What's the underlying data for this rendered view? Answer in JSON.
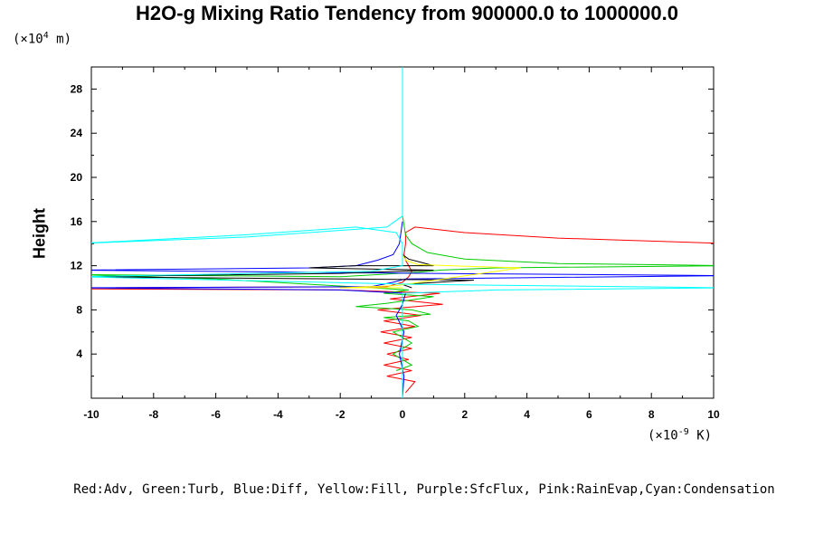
{
  "chart_data": {
    "type": "line",
    "title": "H2O-g Mixing Ratio Tendency from 900000.0 to 1000000.0",
    "xlabel": "",
    "ylabel": "Height",
    "x_unit_prefix": "(×10",
    "x_unit_exp": "-9",
    "x_unit_suffix": " K)",
    "y_unit_prefix": "(×10",
    "y_unit_exp": "4",
    "y_unit_suffix": " m)",
    "xlim": [
      -10,
      10
    ],
    "ylim": [
      0,
      30
    ],
    "x_ticks": [
      "-10",
      "-8",
      "-6",
      "-4",
      "-2",
      "0",
      "2",
      "4",
      "6",
      "8",
      "10"
    ],
    "y_ticks": [
      "4",
      "8",
      "12",
      "16",
      "20",
      "24",
      "28"
    ],
    "legend_text": "Red:Adv, Green:Turb, Blue:Diff, Yellow:Fill, Purple:SfcFlux, Pink:RainEvap,Cyan:Condensation",
    "series": [
      {
        "color": "#ff0000",
        "points": [
          [
            0.1,
            0.5
          ],
          [
            0.4,
            1.5
          ],
          [
            -0.5,
            2.0
          ],
          [
            0.3,
            2.5
          ],
          [
            -0.6,
            3.0
          ],
          [
            0.2,
            3.5
          ],
          [
            -0.5,
            4.0
          ],
          [
            0.3,
            4.5
          ],
          [
            -0.6,
            5.0
          ],
          [
            0.3,
            5.5
          ],
          [
            -0.7,
            6.0
          ],
          [
            0.4,
            6.5
          ],
          [
            -0.6,
            7.0
          ],
          [
            0.6,
            7.5
          ],
          [
            -0.8,
            8.0
          ],
          [
            1.3,
            8.5
          ],
          [
            -0.4,
            9.0
          ],
          [
            1.2,
            9.5
          ],
          [
            -2.0,
            9.8
          ],
          [
            -10.5,
            9.9
          ],
          [
            -10.5,
            10.0
          ],
          [
            -0.5,
            10.1
          ],
          [
            0,
            10.5
          ],
          [
            0.2,
            11.0
          ],
          [
            0.3,
            11.5
          ],
          [
            0.2,
            12.0
          ],
          [
            0.1,
            12.5
          ],
          [
            0.05,
            13.0
          ],
          [
            0.1,
            14.0
          ],
          [
            0.1,
            15.0
          ],
          [
            0.4,
            15.5
          ],
          [
            2.0,
            15.0
          ],
          [
            5.0,
            14.5
          ],
          [
            10.5,
            14.0
          ]
        ]
      },
      {
        "color": "#00cc00",
        "points": [
          [
            -0.2,
            2.5
          ],
          [
            0.3,
            3.0
          ],
          [
            -0.3,
            4.0
          ],
          [
            0.3,
            5.0
          ],
          [
            -0.3,
            6.0
          ],
          [
            0.5,
            6.5
          ],
          [
            0.2,
            7.0
          ],
          [
            -0.6,
            7.3
          ],
          [
            0.9,
            7.6
          ],
          [
            0.3,
            8.0
          ],
          [
            -1.5,
            8.3
          ],
          [
            -0.5,
            8.6
          ],
          [
            0.3,
            8.9
          ],
          [
            1.0,
            9.2
          ],
          [
            -0.6,
            9.5
          ],
          [
            0.2,
            9.8
          ],
          [
            -1.0,
            10.0
          ],
          [
            -6.0,
            10.8
          ],
          [
            -10.5,
            11.2
          ],
          [
            -2.0,
            11.0
          ],
          [
            0.5,
            11.4
          ],
          [
            1.2,
            11.6
          ],
          [
            3.0,
            11.8
          ],
          [
            10.5,
            12.0
          ],
          [
            5.0,
            12.2
          ],
          [
            2.0,
            12.6
          ],
          [
            0.8,
            13.2
          ],
          [
            0.3,
            14.0
          ],
          [
            0.1,
            14.8
          ],
          [
            0.0,
            16.5
          ]
        ]
      },
      {
        "color": "#0000ff",
        "points": [
          [
            0.0,
            0.0
          ],
          [
            0.05,
            2.0
          ],
          [
            -0.1,
            4.0
          ],
          [
            0.05,
            6.0
          ],
          [
            -0.2,
            7.5
          ],
          [
            0.0,
            8.5
          ],
          [
            0.1,
            9.5
          ],
          [
            -2.0,
            9.8
          ],
          [
            -10.5,
            10.0
          ],
          [
            -1.0,
            10.1
          ],
          [
            -0.3,
            10.5
          ],
          [
            0.1,
            10.8
          ],
          [
            10.5,
            11.1
          ],
          [
            1.0,
            11.3
          ],
          [
            -10.5,
            11.6
          ],
          [
            -3.0,
            11.8
          ],
          [
            -1.5,
            12.0
          ],
          [
            -0.8,
            12.5
          ],
          [
            -0.3,
            13.0
          ],
          [
            -0.1,
            14.0
          ],
          [
            0.0,
            16.0
          ]
        ]
      },
      {
        "color": "#000000",
        "points": [
          [
            0.3,
            10.0
          ],
          [
            0.0,
            10.3
          ],
          [
            2.3,
            10.7
          ],
          [
            -10.5,
            11.0
          ],
          [
            -2.0,
            11.3
          ],
          [
            1.0,
            11.6
          ],
          [
            -3.0,
            11.8
          ],
          [
            -1.5,
            12.0
          ],
          [
            1.0,
            12.0
          ],
          [
            0.6,
            12.3
          ],
          [
            0.2,
            12.6
          ],
          [
            0.0,
            13.0
          ],
          [
            0.0,
            14.0
          ]
        ]
      },
      {
        "color": "#ffff00",
        "points": [
          [
            0.0,
            10.0
          ],
          [
            -2.0,
            10.0
          ],
          [
            -0.2,
            10.2
          ],
          [
            3.8,
            11.8
          ],
          [
            2.5,
            11.9
          ],
          [
            0.5,
            12.1
          ],
          [
            0.1,
            12.5
          ],
          [
            0.0,
            13.0
          ]
        ]
      },
      {
        "color": "#00ffff",
        "points": [
          [
            0.0,
            0.0
          ],
          [
            0.0,
            8.0
          ],
          [
            0.0,
            9.5
          ],
          [
            3.0,
            9.8
          ],
          [
            10.5,
            10.0
          ],
          [
            0.5,
            10.3
          ],
          [
            -10.5,
            11.0
          ],
          [
            -1.0,
            11.5
          ],
          [
            0.0,
            12.0
          ],
          [
            0.0,
            14.0
          ],
          [
            -0.2,
            15.0
          ],
          [
            -1.5,
            15.5
          ],
          [
            -5.0,
            14.8
          ],
          [
            -10.5,
            14.0
          ],
          [
            -5.0,
            14.6
          ],
          [
            -0.5,
            15.5
          ],
          [
            0.0,
            16.5
          ],
          [
            0.0,
            30.0
          ]
        ]
      }
    ]
  }
}
